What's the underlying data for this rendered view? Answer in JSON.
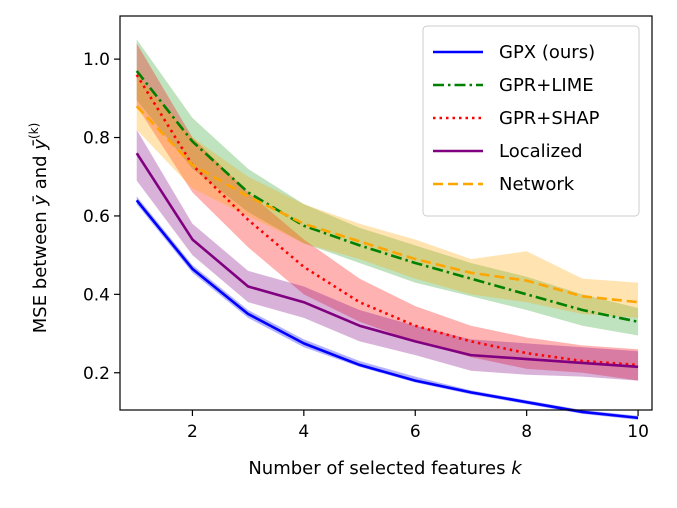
{
  "chart_data": {
    "type": "line",
    "title": "",
    "xlabel": "Number of selected features",
    "xlabel_var": "k",
    "ylabel_prefix": "MSE between ",
    "ylabel_mid": " and ",
    "ylabel_sym1": "ȳ",
    "ylabel_sym2": "ȳ",
    "ylabel_sup": "(k)",
    "xlim": [
      0.7,
      10.25
    ],
    "ylim": [
      0.105,
      1.11
    ],
    "xticks": [
      2,
      4,
      6,
      8,
      10
    ],
    "yticks": [
      0.2,
      0.4,
      0.6,
      0.8,
      1.0
    ],
    "ytick_labels": [
      "0.2",
      "0.4",
      "0.6",
      "0.8",
      "1.0"
    ],
    "grid": false,
    "legend_position": "top-right",
    "x": [
      1,
      2,
      3,
      4,
      5,
      6,
      7,
      8,
      9,
      10
    ],
    "series": [
      {
        "name": "GPX (ours)",
        "color": "#0000ff",
        "dash": "solid",
        "values": [
          0.64,
          0.465,
          0.35,
          0.275,
          0.22,
          0.18,
          0.15,
          0.125,
          0.1,
          0.085
        ],
        "lower": [
          0.63,
          0.455,
          0.34,
          0.265,
          0.215,
          0.175,
          0.145,
          0.12,
          0.095,
          0.08
        ],
        "upper": [
          0.65,
          0.475,
          0.36,
          0.285,
          0.23,
          0.19,
          0.155,
          0.13,
          0.105,
          0.09
        ]
      },
      {
        "name": "GPR+LIME",
        "color": "#008000",
        "band_color": "#2ca02c",
        "dash": "dashdot",
        "values": [
          0.97,
          0.79,
          0.66,
          0.575,
          0.525,
          0.48,
          0.44,
          0.4,
          0.36,
          0.33
        ],
        "lower": [
          0.895,
          0.72,
          0.61,
          0.53,
          0.48,
          0.43,
          0.395,
          0.36,
          0.32,
          0.295
        ],
        "upper": [
          1.05,
          0.85,
          0.72,
          0.63,
          0.57,
          0.525,
          0.48,
          0.445,
          0.4,
          0.365
        ]
      },
      {
        "name": "GPR+SHAP",
        "color": "#ff0000",
        "dash": "dotted",
        "values": [
          0.96,
          0.73,
          0.59,
          0.47,
          0.38,
          0.32,
          0.28,
          0.25,
          0.23,
          0.22
        ],
        "lower": [
          0.88,
          0.66,
          0.52,
          0.4,
          0.33,
          0.28,
          0.24,
          0.21,
          0.2,
          0.18
        ],
        "upper": [
          1.04,
          0.8,
          0.66,
          0.54,
          0.44,
          0.37,
          0.32,
          0.29,
          0.27,
          0.26
        ]
      },
      {
        "name": "Localized",
        "color": "#800080",
        "dash": "solid",
        "values": [
          0.76,
          0.54,
          0.42,
          0.38,
          0.32,
          0.28,
          0.245,
          0.235,
          0.225,
          0.215
        ],
        "lower": [
          0.69,
          0.5,
          0.38,
          0.34,
          0.28,
          0.245,
          0.205,
          0.195,
          0.19,
          0.18
        ],
        "upper": [
          0.82,
          0.58,
          0.46,
          0.42,
          0.36,
          0.32,
          0.285,
          0.275,
          0.265,
          0.255
        ]
      },
      {
        "name": "Network",
        "color": "#ffa500",
        "dash": "dashed",
        "values": [
          0.88,
          0.73,
          0.65,
          0.58,
          0.535,
          0.49,
          0.455,
          0.435,
          0.395,
          0.38
        ],
        "lower": [
          0.82,
          0.67,
          0.6,
          0.53,
          0.49,
          0.44,
          0.4,
          0.38,
          0.35,
          0.34
        ],
        "upper": [
          0.96,
          0.8,
          0.7,
          0.63,
          0.58,
          0.54,
          0.49,
          0.51,
          0.44,
          0.43
        ]
      }
    ]
  }
}
